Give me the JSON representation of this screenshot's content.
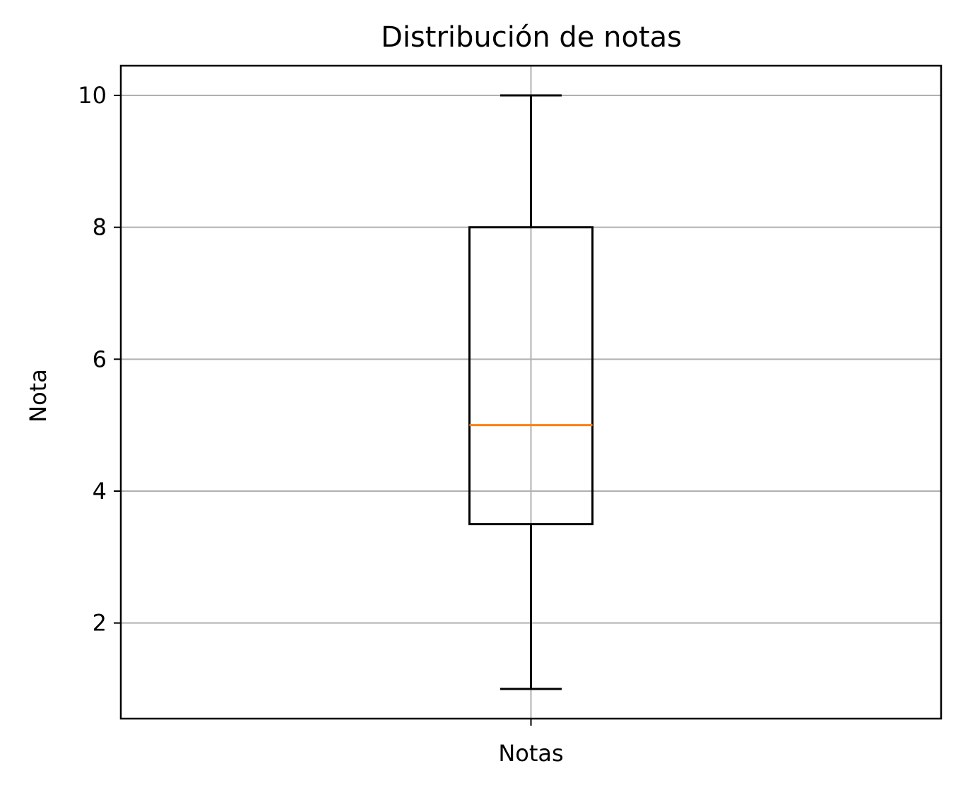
{
  "chart_data": {
    "type": "box",
    "title": "Distribución de notas",
    "xlabel": "",
    "ylabel": "Nota",
    "categories": [
      "Notas"
    ],
    "boxes": [
      {
        "category": "Notas",
        "whisker_low": 1,
        "q1": 3.5,
        "median": 5,
        "q3": 8,
        "whisker_high": 10
      }
    ],
    "ylim": [
      0.55,
      10.45
    ],
    "yticks": [
      2,
      4,
      6,
      8,
      10
    ],
    "ytick_labels": [
      "2",
      "4",
      "6",
      "8",
      "10"
    ],
    "grid": true,
    "colors": {
      "box": "#000000",
      "median": "#ff7f0e",
      "grid": "#b0b0b0"
    }
  }
}
